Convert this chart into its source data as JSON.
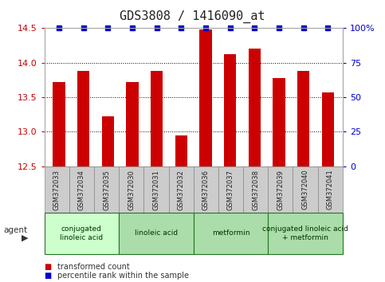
{
  "title": "GDS3808 / 1416090_at",
  "samples": [
    "GSM372033",
    "GSM372034",
    "GSM372035",
    "GSM372030",
    "GSM372031",
    "GSM372032",
    "GSM372036",
    "GSM372037",
    "GSM372038",
    "GSM372039",
    "GSM372040",
    "GSM372041"
  ],
  "bar_values": [
    13.72,
    13.88,
    13.22,
    13.72,
    13.88,
    12.95,
    14.48,
    14.12,
    14.2,
    13.78,
    13.88,
    13.57
  ],
  "ylim": [
    12.5,
    14.5
  ],
  "yticks": [
    12.5,
    13.0,
    13.5,
    14.0,
    14.5
  ],
  "right_yticks": [
    0,
    25,
    50,
    75,
    100
  ],
  "right_ytick_labels": [
    "0",
    "25",
    "50",
    "75",
    "100%"
  ],
  "bar_color": "#cc0000",
  "percentile_color": "#0000cc",
  "agent_groups": [
    {
      "label": "conjugated\nlinoleic acid",
      "start": 0,
      "end": 3,
      "color": "#ccffcc"
    },
    {
      "label": "linoleic acid",
      "start": 3,
      "end": 6,
      "color": "#aaddaa"
    },
    {
      "label": "metformin",
      "start": 6,
      "end": 9,
      "color": "#aaddaa"
    },
    {
      "label": "conjugated linoleic acid\n+ metformin",
      "start": 9,
      "end": 12,
      "color": "#aaddaa"
    }
  ],
  "legend_items": [
    {
      "color": "#cc0000",
      "label": "transformed count"
    },
    {
      "color": "#0000cc",
      "label": "percentile rank within the sample"
    }
  ],
  "background_color": "#ffffff",
  "grid_color": "#000000",
  "axis_label_color_left": "#cc0000",
  "axis_label_color_right": "#0000cc",
  "bar_width": 0.5,
  "sample_bg_color": "#cccccc",
  "title_fontsize": 11,
  "tick_fontsize": 8,
  "label_fontsize": 8
}
